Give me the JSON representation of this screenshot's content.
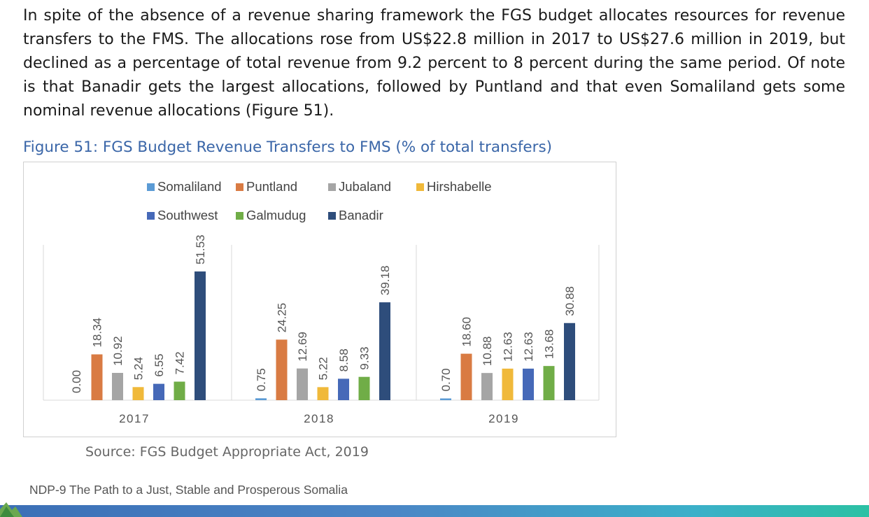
{
  "document": {
    "paragraph": "In spite of the absence of a revenue sharing framework the FGS budget allocates resources for revenue transfers to the FMS. The allocations rose from US$22.8 million in 2017 to US$27.6 million in 2019, but declined as a percentage of total revenue from 9.2 percent to 8 percent during the same period. Of note is that Banadir gets the largest allocations, followed by Puntland and that even Somaliland gets some nominal revenue allocations (Figure 51).",
    "figure_caption": "Figure 51: FGS Budget Revenue Transfers to FMS (% of total transfers)",
    "source": "Source: FGS Budget Appropriate Act, 2019",
    "footer": "NDP-9 The Path to a Just, Stable and Prosperous Somalia"
  },
  "chart_data": {
    "type": "bar",
    "title": "",
    "xlabel": "",
    "ylabel": "",
    "ylim": [
      0,
      60
    ],
    "grid": false,
    "legend_position": "top",
    "categories": [
      "2017",
      "2018",
      "2019"
    ],
    "series": [
      {
        "name": "Somaliland",
        "color": "#5b9bd5",
        "values": [
          0.0,
          0.75,
          0.7
        ],
        "labels": [
          "0.00",
          "0.75",
          "0.70"
        ]
      },
      {
        "name": "Puntland",
        "color": "#d97b43",
        "values": [
          18.34,
          24.25,
          18.6
        ],
        "labels": [
          "18.34",
          "24.25",
          "18.60"
        ]
      },
      {
        "name": "Jubaland",
        "color": "#a5a5a5",
        "values": [
          10.92,
          12.69,
          10.88
        ],
        "labels": [
          "10.92",
          "12.69",
          "10.88"
        ]
      },
      {
        "name": "Hirshabelle",
        "color": "#f0b93a",
        "values": [
          5.24,
          5.22,
          12.63
        ],
        "labels": [
          "5.24",
          "5.22",
          "12.63"
        ]
      },
      {
        "name": "Southwest",
        "color": "#4669b8",
        "values": [
          6.55,
          8.58,
          12.63
        ],
        "labels": [
          "6.55",
          "8.58",
          "12.63"
        ]
      },
      {
        "name": "Galmudug",
        "color": "#70ad47",
        "values": [
          7.42,
          9.33,
          13.68
        ],
        "labels": [
          "7.42",
          "9.33",
          "13.68"
        ]
      },
      {
        "name": "Banadir",
        "color": "#2e4d7b",
        "values": [
          51.53,
          39.18,
          30.88
        ],
        "labels": [
          "51.53",
          "39.18",
          "30.88"
        ]
      }
    ]
  }
}
